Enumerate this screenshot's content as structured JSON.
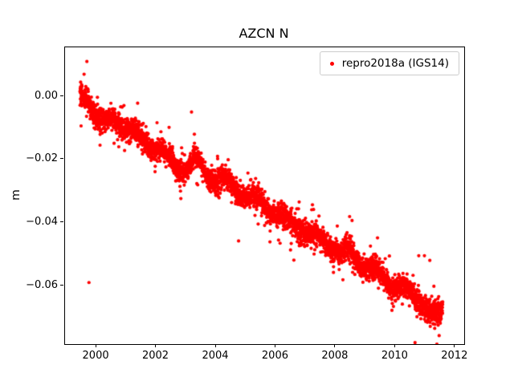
{
  "chart_data": {
    "type": "scatter",
    "title": "AZCN N",
    "ylabel": "m",
    "xlabel": "",
    "legend_label": "repro2018a (IGS14)",
    "legend_position": "upper right",
    "marker_color": "#ff0000",
    "marker_radius_px": 2.1,
    "grid": false,
    "xlim": [
      1998.95,
      2012.3
    ],
    "ylim": [
      -0.0785,
      0.0155
    ],
    "xticks": [
      2000,
      2002,
      2004,
      2006,
      2008,
      2010,
      2012
    ],
    "xtick_labels": [
      "2000",
      "2002",
      "2004",
      "2006",
      "2008",
      "2010",
      "2012"
    ],
    "yticks": [
      0.0,
      -0.02,
      -0.04,
      -0.06
    ],
    "ytick_labels": [
      "0.00",
      "−0.02",
      "−0.04",
      "−0.06"
    ],
    "x_start": 1999.45,
    "x_end": 2011.58,
    "points_per_year": 330,
    "seasonal_amplitude": 0.0016,
    "noise_sigma": 0.0017,
    "outlier_noise_sigma": 0.0042,
    "outlier_noise_fraction": 0.08,
    "trend": {
      "x": [
        1999.45,
        1999.7,
        2000.0,
        2000.3,
        2000.6,
        2001.0,
        2001.4,
        2001.8,
        2002.1,
        2002.4,
        2002.7,
        2003.0,
        2003.3,
        2003.6,
        2004.0,
        2004.4,
        2004.8,
        2005.2,
        2005.6,
        2006.0,
        2006.4,
        2006.8,
        2007.2,
        2007.6,
        2008.0,
        2008.15,
        2008.4,
        2008.8,
        2009.2,
        2009.6,
        2010.0,
        2010.4,
        2010.8,
        2011.1,
        2011.3,
        2011.58
      ],
      "y": [
        -0.001,
        0.0,
        -0.006,
        -0.009,
        -0.007,
        -0.01,
        -0.013,
        -0.015,
        -0.017,
        -0.02,
        -0.022,
        -0.023,
        -0.02,
        -0.024,
        -0.026,
        -0.028,
        -0.03,
        -0.032,
        -0.034,
        -0.037,
        -0.04,
        -0.041,
        -0.044,
        -0.046,
        -0.048,
        -0.051,
        -0.049,
        -0.052,
        -0.055,
        -0.057,
        -0.06,
        -0.062,
        -0.064,
        -0.068,
        -0.071,
        -0.068
      ]
    },
    "outliers": [
      [
        1999.68,
        0.011
      ],
      [
        1999.75,
        -0.059
      ],
      [
        2000.12,
        -0.0155
      ],
      [
        2003.18,
        -0.005
      ],
      [
        2004.05,
        -0.019
      ],
      [
        2006.78,
        -0.0335
      ],
      [
        2007.93,
        -0.054
      ],
      [
        2010.78,
        -0.0505
      ],
      [
        2010.97,
        -0.0505
      ],
      [
        2011.15,
        -0.052
      ]
    ]
  }
}
